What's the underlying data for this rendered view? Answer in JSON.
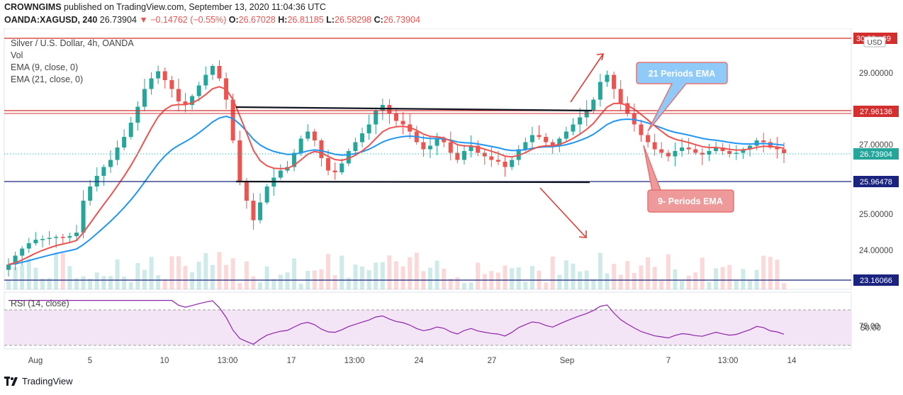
{
  "header": {
    "publisher": "CROWNGIMS",
    "published_text": "published on TradingView.com, September 13, 2020 11:04:36 UTC",
    "symbol": "OANDA:XAGUSD, 240",
    "last": "26.73904",
    "change": "▼ −0.14762 (−0.55%)",
    "o_label": "O:",
    "o": "26.67028",
    "h_label": "H:",
    "h": "26.81185",
    "l_label": "L:",
    "l": "26.58298",
    "c_label": "C:",
    "c": "26.73904"
  },
  "legend": {
    "title": "Silver / U.S. Dollar, 4h, OANDA",
    "vol": "Vol",
    "ema9": "EMA (9, close, 0)",
    "ema21": "EMA (21, close, 0)",
    "rsi": "RSI (14, close)"
  },
  "currency": "USD",
  "annotations": {
    "ema21": "21 Periods EMA",
    "ema9": "9- Periods EMA"
  },
  "price_labels": {
    "top": "30.00...69",
    "upper_resistance": "27.96136",
    "current": "26.73904",
    "support": "25.96478",
    "lower_support": "23.16066"
  },
  "colors": {
    "up": "#26a69a",
    "down": "#ef5350",
    "ema9": "#ef5350",
    "ema21": "#2196f3",
    "rsi": "#8e24aa",
    "rsi_band": "#f3e5f5",
    "hline_red": "#d32f2f",
    "hline_blue": "#1a237e"
  },
  "footer": {
    "brand": "TradingView"
  },
  "chart_data": [
    {
      "type": "candlestick",
      "title": "Silver / U.S. Dollar, 4h, OANDA",
      "y_axis_ticks": [
        "29.00000",
        "27.00000",
        "25.00000",
        "24.00000"
      ],
      "x_axis_ticks": [
        "Aug",
        "5",
        "10",
        "13:00",
        "17",
        "13:00",
        "24",
        "27",
        "Sep",
        "7",
        "13:00",
        "14"
      ],
      "ylim": [
        22.7,
        30.5
      ],
      "horizontal_levels": [
        30.0,
        27.96136,
        25.96478,
        23.16066
      ],
      "closes": [
        23.6,
        23.85,
        24.05,
        24.2,
        24.3,
        24.32,
        24.35,
        24.38,
        24.36,
        24.4,
        24.5,
        25.4,
        25.8,
        26.1,
        26.35,
        26.55,
        26.9,
        27.2,
        27.6,
        28.05,
        28.55,
        28.85,
        29.05,
        28.8,
        28.55,
        28.2,
        28.1,
        28.35,
        28.65,
        28.95,
        29.2,
        28.85,
        28.25,
        27.1,
        25.95,
        25.4,
        24.85,
        25.35,
        25.8,
        26.05,
        26.25,
        26.35,
        26.75,
        27.15,
        27.35,
        27.1,
        26.6,
        26.25,
        26.2,
        26.45,
        26.8,
        27.05,
        27.3,
        27.55,
        27.95,
        28.1,
        27.85,
        27.65,
        27.55,
        27.35,
        27.05,
        26.85,
        26.95,
        27.15,
        27.05,
        26.75,
        26.55,
        26.8,
        26.95,
        26.75,
        26.65,
        26.55,
        26.5,
        26.35,
        26.55,
        26.85,
        27.05,
        27.25,
        27.2,
        27.05,
        26.95,
        27.15,
        27.35,
        27.55,
        27.75,
        27.95,
        28.25,
        28.75,
        28.95,
        28.55,
        28.15,
        27.85,
        27.55,
        27.25,
        27.05,
        26.85,
        26.75,
        26.65,
        26.8,
        26.9,
        26.85,
        26.75,
        26.7,
        26.8,
        26.9,
        26.8,
        26.72,
        26.75,
        26.85,
        26.95,
        27.1,
        27.05,
        26.9,
        26.85,
        26.74
      ],
      "ema9_note": "computed from closes",
      "rsi_levels": [
        70,
        30
      ],
      "rsi_ticks": [
        "75.00",
        "50.00"
      ]
    }
  ]
}
